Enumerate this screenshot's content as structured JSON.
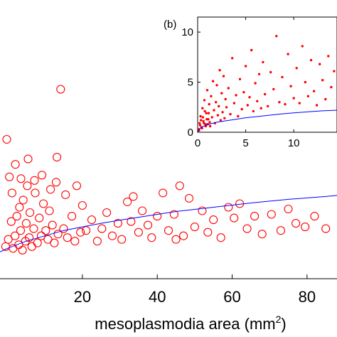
{
  "chart_data": [
    {
      "id": "main",
      "type": "scatter",
      "xlabel": "mesoplasmodia area (mm",
      "xlabel_sup": "2",
      "xlabel_close": ")",
      "xlim": [
        -2,
        88
      ],
      "x_ticks": [
        20,
        40,
        60,
        80
      ],
      "x_tick_labels": [
        "20",
        "40",
        "60",
        "80"
      ],
      "series": [
        {
          "marker": "open-circle",
          "color": "#ff0000",
          "points": [
            [
              -0.5,
              1.1
            ],
            [
              0.2,
              1.3
            ],
            [
              1.0,
              1.8
            ],
            [
              1.5,
              1.05
            ],
            [
              2.0,
              1.4
            ],
            [
              2.5,
              1.95
            ],
            [
              3.0,
              1.15
            ],
            [
              3.2,
              2.2
            ],
            [
              3.5,
              1.55
            ],
            [
              4.0,
              1.0
            ],
            [
              4.2,
              2.4
            ],
            [
              4.8,
              1.25
            ],
            [
              5.0,
              1.75
            ],
            [
              5.3,
              2.8
            ],
            [
              5.8,
              1.35
            ],
            [
              6.0,
              2.05
            ],
            [
              6.5,
              1.1
            ],
            [
              7.0,
              1.6
            ],
            [
              7.4,
              2.6
            ],
            [
              8.0,
              1.2
            ],
            [
              8.5,
              1.9
            ],
            [
              9.0,
              1.4
            ],
            [
              9.6,
              2.3
            ],
            [
              10.2,
              1.55
            ],
            [
              10.8,
              1.3
            ],
            [
              11.2,
              2.1
            ],
            [
              12.0,
              1.7
            ],
            [
              12.5,
              1.2
            ],
            [
              13.0,
              2.9
            ],
            [
              13.5,
              1.45
            ],
            [
              14.2,
              5.5
            ],
            [
              15.0,
              1.6
            ],
            [
              16.0,
              1.35
            ],
            [
              17.2,
              1.95
            ],
            [
              18.0,
              1.25
            ],
            [
              19.5,
              1.5
            ],
            [
              -0.2,
              4.1
            ],
            [
              0.5,
              3.05
            ],
            [
              1.2,
              2.6
            ],
            [
              2.1,
              3.4
            ],
            [
              3.6,
              3.0
            ],
            [
              5.5,
              3.55
            ],
            [
              7.2,
              2.95
            ],
            [
              9.2,
              3.1
            ],
            [
              11.5,
              2.7
            ],
            [
              13.2,
              3.6
            ],
            [
              15.5,
              2.55
            ],
            [
              18.5,
              2.8
            ],
            [
              20.0,
              2.25
            ],
            [
              21.0,
              1.55
            ],
            [
              22.5,
              1.85
            ],
            [
              24.0,
              1.25
            ],
            [
              25.2,
              1.6
            ],
            [
              26.5,
              2.05
            ],
            [
              28.0,
              1.4
            ],
            [
              29.5,
              1.75
            ],
            [
              30.5,
              1.3
            ],
            [
              32.0,
              2.35
            ],
            [
              33.0,
              1.8
            ],
            [
              33.6,
              2.5
            ],
            [
              35.0,
              1.5
            ],
            [
              36.0,
              2.1
            ],
            [
              37.5,
              1.7
            ],
            [
              38.5,
              1.35
            ],
            [
              40.0,
              1.95
            ],
            [
              41.5,
              2.6
            ],
            [
              43.0,
              1.55
            ],
            [
              44.5,
              2.0
            ],
            [
              45.0,
              1.3
            ],
            [
              46.0,
              2.8
            ],
            [
              47.0,
              1.4
            ],
            [
              48.5,
              2.45
            ],
            [
              50.0,
              1.65
            ],
            [
              52.0,
              2.1
            ],
            [
              53.5,
              1.5
            ],
            [
              55.0,
              1.85
            ],
            [
              57.0,
              1.35
            ],
            [
              59.0,
              2.2
            ],
            [
              60.5,
              1.9
            ],
            [
              62.0,
              2.3
            ],
            [
              64.0,
              1.6
            ],
            [
              66.0,
              1.95
            ],
            [
              68.0,
              1.45
            ],
            [
              70.5,
              2.0
            ],
            [
              73.0,
              1.55
            ],
            [
              75.0,
              2.15
            ],
            [
              77.0,
              1.75
            ],
            [
              79.5,
              1.65
            ],
            [
              82.0,
              1.95
            ],
            [
              85.0,
              1.6
            ]
          ]
        },
        {
          "type": "line",
          "color": "#0000ff",
          "points": [
            [
              -2,
              0.95
            ],
            [
              0,
              1.05
            ],
            [
              5,
              1.25
            ],
            [
              10,
              1.4
            ],
            [
              15,
              1.55
            ],
            [
              20,
              1.65
            ],
            [
              25,
              1.75
            ],
            [
              30,
              1.84
            ],
            [
              35,
              1.92
            ],
            [
              40,
              2.0
            ],
            [
              45,
              2.08
            ],
            [
              50,
              2.14
            ],
            [
              55,
              2.2
            ],
            [
              60,
              2.26
            ],
            [
              65,
              2.32
            ],
            [
              70,
              2.37
            ],
            [
              75,
              2.42
            ],
            [
              80,
              2.46
            ],
            [
              85,
              2.5
            ],
            [
              88,
              2.53
            ]
          ]
        }
      ]
    },
    {
      "id": "inset",
      "type": "scatter",
      "panel_label": "(b)",
      "xlim": [
        0,
        14.5
      ],
      "ylim": [
        0,
        11.5
      ],
      "x_ticks": [
        0,
        5,
        10
      ],
      "x_tick_labels": [
        "0",
        "5",
        "10"
      ],
      "y_ticks": [
        0,
        5,
        10
      ],
      "y_tick_labels": [
        "0",
        "5",
        "10"
      ],
      "series": [
        {
          "marker": "filled-dot",
          "color": "#ff0000",
          "points": [
            [
              0.1,
              0.3
            ],
            [
              0.2,
              0.9
            ],
            [
              0.3,
              1.6
            ],
            [
              0.4,
              0.5
            ],
            [
              0.5,
              2.4
            ],
            [
              0.6,
              1.1
            ],
            [
              0.7,
              3.2
            ],
            [
              0.8,
              0.8
            ],
            [
              0.9,
              1.9
            ],
            [
              1.0,
              4.2
            ],
            [
              1.1,
              1.3
            ],
            [
              1.2,
              2.8
            ],
            [
              1.3,
              0.6
            ],
            [
              1.4,
              3.6
            ],
            [
              1.5,
              1.5
            ],
            [
              1.6,
              5.1
            ],
            [
              1.7,
              2.2
            ],
            [
              1.8,
              0.9
            ],
            [
              1.9,
              3.0
            ],
            [
              2.0,
              4.7
            ],
            [
              2.1,
              1.7
            ],
            [
              2.2,
              2.6
            ],
            [
              2.3,
              6.2
            ],
            [
              2.4,
              1.2
            ],
            [
              2.5,
              3.9
            ],
            [
              2.6,
              2.0
            ],
            [
              2.7,
              5.6
            ],
            [
              2.8,
              1.4
            ],
            [
              2.9,
              3.3
            ],
            [
              3.0,
              2.5
            ],
            [
              3.2,
              4.4
            ],
            [
              3.4,
              1.8
            ],
            [
              3.6,
              7.4
            ],
            [
              3.8,
              2.9
            ],
            [
              4.0,
              3.7
            ],
            [
              4.2,
              1.6
            ],
            [
              4.4,
              5.3
            ],
            [
              4.6,
              2.3
            ],
            [
              4.8,
              4.0
            ],
            [
              5.0,
              6.6
            ],
            [
              5.2,
              2.7
            ],
            [
              5.4,
              3.5
            ],
            [
              5.6,
              8.2
            ],
            [
              5.8,
              2.1
            ],
            [
              6.0,
              4.9
            ],
            [
              6.2,
              3.1
            ],
            [
              6.4,
              5.8
            ],
            [
              6.6,
              2.4
            ],
            [
              6.8,
              7.0
            ],
            [
              7.0,
              3.8
            ],
            [
              7.3,
              2.6
            ],
            [
              7.6,
              6.0
            ],
            [
              7.9,
              4.3
            ],
            [
              8.2,
              9.6
            ],
            [
              8.5,
              3.0
            ],
            [
              8.8,
              5.5
            ],
            [
              9.1,
              2.8
            ],
            [
              9.4,
              7.8
            ],
            [
              9.7,
              4.6
            ],
            [
              10.0,
              3.4
            ],
            [
              10.3,
              6.4
            ],
            [
              10.6,
              2.9
            ],
            [
              10.9,
              8.6
            ],
            [
              11.2,
              5.0
            ],
            [
              11.5,
              3.6
            ],
            [
              11.8,
              7.2
            ],
            [
              12.1,
              4.1
            ],
            [
              12.4,
              2.7
            ],
            [
              12.7,
              6.8
            ],
            [
              13.0,
              5.2
            ],
            [
              13.3,
              3.3
            ],
            [
              13.6,
              7.6
            ],
            [
              13.9,
              4.5
            ],
            [
              14.2,
              6.1
            ],
            [
              0.15,
              0.2
            ],
            [
              0.25,
              0.7
            ],
            [
              0.35,
              1.2
            ],
            [
              0.45,
              0.4
            ],
            [
              0.55,
              1.5
            ],
            [
              0.65,
              0.9
            ],
            [
              0.75,
              2.1
            ],
            [
              0.85,
              0.6
            ],
            [
              0.95,
              1.3
            ],
            [
              1.05,
              0.8
            ],
            [
              1.15,
              1.9
            ],
            [
              1.25,
              1.0
            ]
          ]
        },
        {
          "type": "line",
          "color": "#0000ff",
          "points": [
            [
              0,
              0.0
            ],
            [
              0.2,
              0.35
            ],
            [
              0.5,
              0.55
            ],
            [
              1,
              0.75
            ],
            [
              2,
              1.0
            ],
            [
              3,
              1.15
            ],
            [
              4,
              1.3
            ],
            [
              5,
              1.45
            ],
            [
              6,
              1.55
            ],
            [
              7,
              1.65
            ],
            [
              8,
              1.75
            ],
            [
              9,
              1.85
            ],
            [
              10,
              1.93
            ],
            [
              11,
              2.0
            ],
            [
              12,
              2.07
            ],
            [
              13,
              2.14
            ],
            [
              14.5,
              2.2
            ]
          ]
        }
      ]
    }
  ]
}
